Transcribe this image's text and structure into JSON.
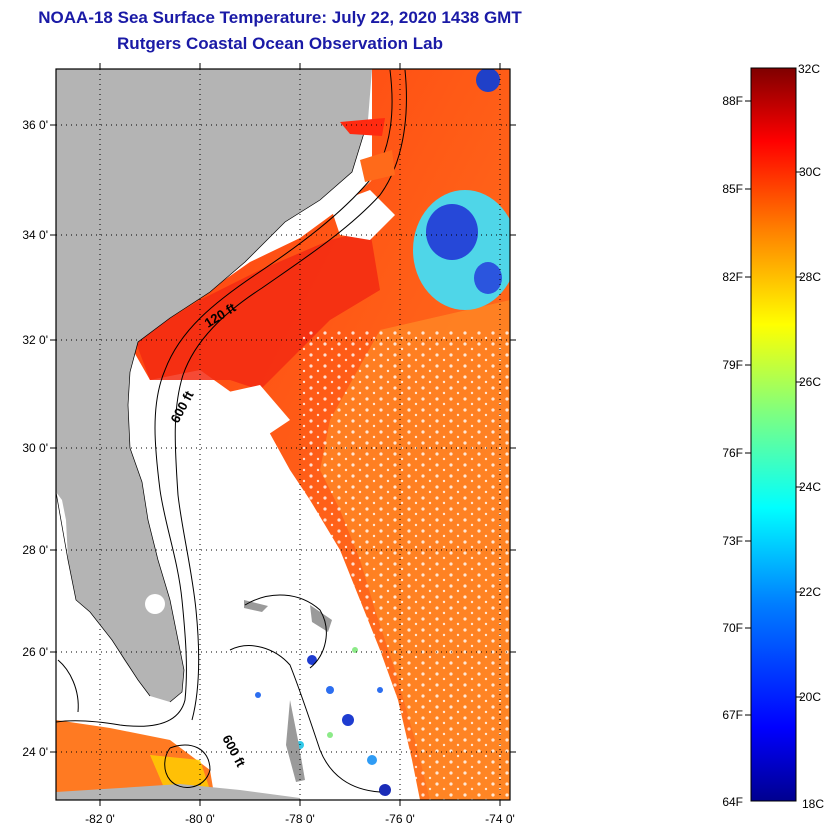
{
  "title": {
    "line1": "NOAA-18 Sea Surface Temperature:  July 22, 2020 1438 GMT",
    "line2": "Rutgers Coastal Ocean Observation Lab"
  },
  "map": {
    "lat_labels": [
      "36 0'",
      "34 0'",
      "32 0'",
      "30 0'",
      "28 0'",
      "26 0'",
      "24 0'"
    ],
    "lon_labels": [
      "-82 0'",
      "-80 0'",
      "-78 0'",
      "-76 0'",
      "-74 0'"
    ],
    "contour_labels": [
      "120 ft",
      "600 ft",
      "600 ft"
    ],
    "land_color": "#b4b4b4",
    "cloud_color": "#ffffff"
  },
  "colorbar": {
    "celsius_labels": [
      "32C",
      "30C",
      "28C",
      "26C",
      "24C",
      "22C",
      "20C",
      "18C"
    ],
    "fahrenheit_labels": [
      "88F",
      "85F",
      "82F",
      "79F",
      "76F",
      "73F",
      "70F",
      "67F",
      "64F"
    ],
    "colors": [
      "#00008f",
      "#0000ff",
      "#007fff",
      "#00ffff",
      "#7fff7f",
      "#ffff00",
      "#ff7f00",
      "#ff0000",
      "#7f0000"
    ]
  }
}
